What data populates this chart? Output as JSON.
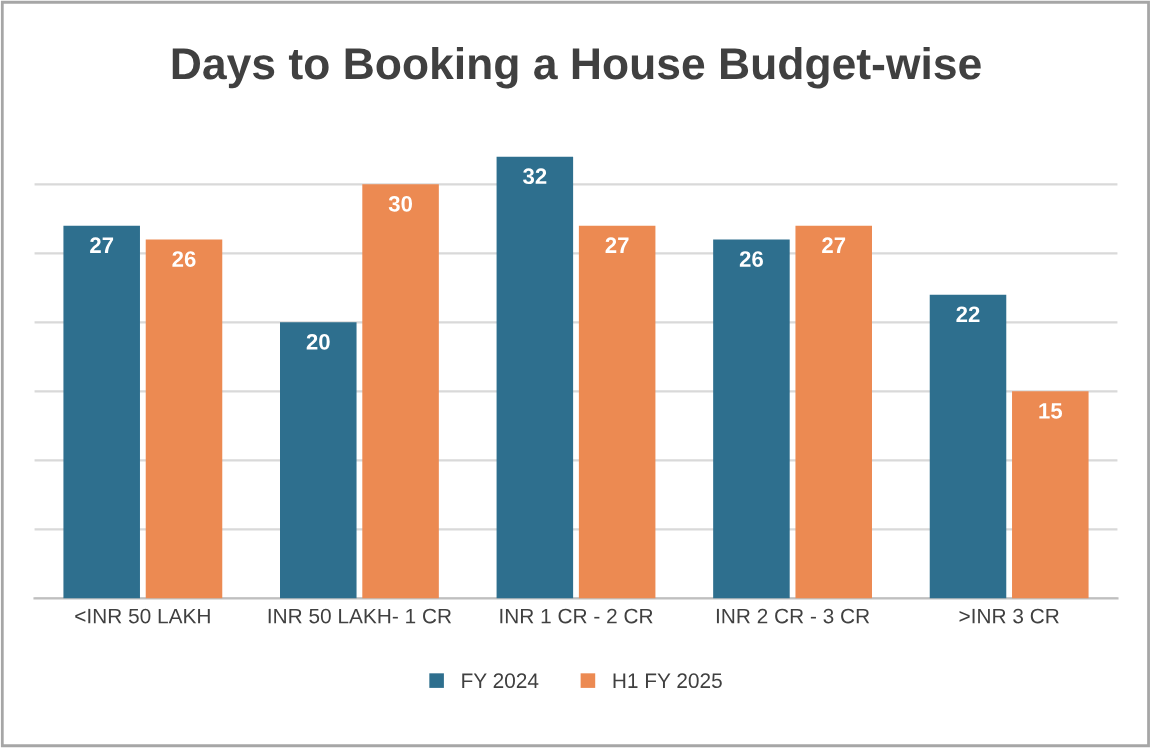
{
  "chart_data": {
    "type": "bar",
    "title": "Days to Booking a House Budget-wise",
    "categories": [
      "<INR 50 LAKH",
      "INR 50 LAKH- 1 CR",
      "INR 1 CR - 2 CR",
      "INR 2 CR - 3 CR",
      ">INR 3 CR"
    ],
    "series": [
      {
        "name": "FY 2024",
        "color": "#2e6f8e",
        "values": [
          27,
          20,
          32,
          26,
          22
        ]
      },
      {
        "name": "H1 FY 2025",
        "color": "#ec8a52",
        "values": [
          26,
          30,
          27,
          27,
          15
        ]
      }
    ],
    "yticks": [
      {
        "value": 0,
        "label": null
      },
      {
        "value": 5,
        "label": null
      },
      {
        "value": 10,
        "label": null
      },
      {
        "value": 15,
        "label": null
      },
      {
        "value": 20,
        "label": null
      },
      {
        "value": 25,
        "label": null
      },
      {
        "value": 30,
        "label": null
      }
    ],
    "tick_labels": "x",
    "grid": "y",
    "legend": "bottom",
    "data_labels": true
  }
}
